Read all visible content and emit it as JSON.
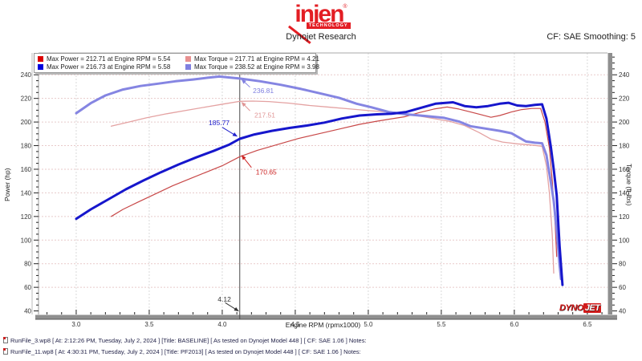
{
  "header": {
    "brand": "injen",
    "registered": "®",
    "tagline": "TECHNOLOGY",
    "brand_color": "#e31e24",
    "subtitle": "Dynojet Research",
    "smoothing": "CF: SAE Smoothing: 5"
  },
  "legend": {
    "items": [
      {
        "swatch": "#dd0000",
        "label": "Max Power = 212.71 at Engine RPM = 5.54"
      },
      {
        "swatch": "#e89090",
        "label": "Max Torque = 217.71 at Engine RPM = 4.21"
      },
      {
        "swatch": "#0000dd",
        "label": "Max Power = 216.73 at Engine RPM = 5.58"
      },
      {
        "swatch": "#8080e0",
        "label": "Max Torque = 238.52 at Engine RPM = 3.98"
      }
    ]
  },
  "chart_data": {
    "type": "line",
    "xlabel": "Engine RPM (rpmx1000)",
    "ylabel_left": "Power (hp)",
    "ylabel_right": "Torque (ft-lbs)",
    "x_range": [
      2.742,
      6.638
    ],
    "y_range": [
      37.0,
      258.5
    ],
    "x_ticks": [
      "3.0",
      "3.5",
      "4.0",
      "4.5",
      "5.0",
      "5.5",
      "6.0",
      "6.5"
    ],
    "x_tick_values": [
      3.0,
      3.5,
      4.0,
      4.5,
      5.0,
      5.5,
      6.0,
      6.5
    ],
    "y_ticks": [
      40,
      60,
      80,
      100,
      120,
      140,
      160,
      180,
      200,
      220,
      240
    ],
    "x_minor_step": 0.1,
    "y_minor_step": 5,
    "grid_h_color": "#e8caca",
    "grid_v_color": "#d9d9d9",
    "cursor_rpm": 4.12,
    "cursor_color": "#4a4a4a",
    "series": [
      {
        "name": "baseline-torque",
        "legend": "Max Torque = 217.71 at Engine RPM = 4.21",
        "color": "#e4a2a2",
        "width": 1.3,
        "points": [
          [
            3.24,
            196.5
          ],
          [
            3.36,
            200
          ],
          [
            3.48,
            203.5
          ],
          [
            3.62,
            207
          ],
          [
            3.76,
            210
          ],
          [
            3.9,
            213
          ],
          [
            4.02,
            215.5
          ],
          [
            4.12,
            217.51
          ],
          [
            4.21,
            217.71
          ],
          [
            4.32,
            217.3
          ],
          [
            4.46,
            216
          ],
          [
            4.6,
            214
          ],
          [
            4.74,
            212.5
          ],
          [
            4.88,
            211
          ],
          [
            5.02,
            209.5
          ],
          [
            5.14,
            208.5
          ],
          [
            5.28,
            206.5
          ],
          [
            5.42,
            203.5
          ],
          [
            5.56,
            200.5
          ],
          [
            5.66,
            197
          ],
          [
            5.76,
            191
          ],
          [
            5.84,
            185.5
          ],
          [
            5.92,
            183
          ],
          [
            6.02,
            181.5
          ],
          [
            6.12,
            180.5
          ],
          [
            6.19,
            179.5
          ],
          [
            6.22,
            163
          ],
          [
            6.24,
            140
          ],
          [
            6.26,
            104
          ],
          [
            6.27,
            72
          ]
        ]
      },
      {
        "name": "baseline-power",
        "legend": "Max Power = 212.71 at Engine RPM = 5.54",
        "color": "#c84848",
        "width": 1.2,
        "points": [
          [
            3.24,
            120
          ],
          [
            3.32,
            126
          ],
          [
            3.42,
            132
          ],
          [
            3.54,
            139
          ],
          [
            3.66,
            146
          ],
          [
            3.78,
            152
          ],
          [
            3.9,
            158
          ],
          [
            4.0,
            163
          ],
          [
            4.12,
            170.65
          ],
          [
            4.24,
            176
          ],
          [
            4.38,
            181
          ],
          [
            4.52,
            186
          ],
          [
            4.66,
            190
          ],
          [
            4.8,
            194
          ],
          [
            4.94,
            198
          ],
          [
            5.05,
            200.5
          ],
          [
            5.15,
            202.5
          ],
          [
            5.25,
            204.5
          ],
          [
            5.35,
            208
          ],
          [
            5.45,
            211
          ],
          [
            5.54,
            212.71
          ],
          [
            5.62,
            211
          ],
          [
            5.7,
            208.5
          ],
          [
            5.78,
            206
          ],
          [
            5.84,
            204
          ],
          [
            5.9,
            205.5
          ],
          [
            5.98,
            208.5
          ],
          [
            6.05,
            210.5
          ],
          [
            6.12,
            211.5
          ],
          [
            6.18,
            211.5
          ],
          [
            6.21,
            200
          ],
          [
            6.24,
            178
          ],
          [
            6.26,
            150
          ],
          [
            6.28,
            112
          ],
          [
            6.29,
            86
          ]
        ]
      },
      {
        "name": "pf2013-torque",
        "legend": "Max Torque = 238.52 at Engine RPM = 3.98",
        "color": "#8585e2",
        "width": 3,
        "points": [
          [
            3.0,
            207.5
          ],
          [
            3.1,
            216
          ],
          [
            3.2,
            222.5
          ],
          [
            3.32,
            227.5
          ],
          [
            3.44,
            230.5
          ],
          [
            3.56,
            232.5
          ],
          [
            3.68,
            234.5
          ],
          [
            3.8,
            236
          ],
          [
            3.9,
            237.5
          ],
          [
            3.98,
            238.52
          ],
          [
            4.12,
            236.81
          ],
          [
            4.26,
            234.5
          ],
          [
            4.4,
            231.5
          ],
          [
            4.54,
            228
          ],
          [
            4.68,
            224
          ],
          [
            4.8,
            220.5
          ],
          [
            4.92,
            215.5
          ],
          [
            5.02,
            212.5
          ],
          [
            5.14,
            208.5
          ],
          [
            5.26,
            206.5
          ],
          [
            5.4,
            205
          ],
          [
            5.52,
            203.5
          ],
          [
            5.62,
            200.5
          ],
          [
            5.7,
            196.5
          ],
          [
            5.8,
            194.5
          ],
          [
            5.9,
            192.5
          ],
          [
            5.98,
            190.5
          ],
          [
            6.08,
            183.5
          ],
          [
            6.14,
            182.5
          ],
          [
            6.19,
            182
          ],
          [
            6.22,
            172
          ],
          [
            6.25,
            149
          ],
          [
            6.27,
            133
          ],
          [
            6.29,
            108
          ],
          [
            6.31,
            79
          ],
          [
            6.32,
            67
          ]
        ]
      },
      {
        "name": "pf2013-power",
        "legend": "Max Power = 216.73 at Engine RPM = 5.58",
        "color": "#1616cc",
        "width": 3,
        "points": [
          [
            3.0,
            118
          ],
          [
            3.1,
            126
          ],
          [
            3.22,
            134.5
          ],
          [
            3.34,
            143
          ],
          [
            3.46,
            150.5
          ],
          [
            3.58,
            157.5
          ],
          [
            3.7,
            164
          ],
          [
            3.82,
            170
          ],
          [
            3.94,
            175.5
          ],
          [
            4.05,
            181
          ],
          [
            4.12,
            185.77
          ],
          [
            4.22,
            189.5
          ],
          [
            4.34,
            192.5
          ],
          [
            4.46,
            195
          ],
          [
            4.58,
            197
          ],
          [
            4.7,
            199.5
          ],
          [
            4.82,
            203
          ],
          [
            4.94,
            205.5
          ],
          [
            5.06,
            206.5
          ],
          [
            5.16,
            207
          ],
          [
            5.26,
            208.5
          ],
          [
            5.36,
            212
          ],
          [
            5.46,
            215.5
          ],
          [
            5.58,
            216.73
          ],
          [
            5.66,
            213.5
          ],
          [
            5.74,
            212.5
          ],
          [
            5.82,
            213.5
          ],
          [
            5.9,
            215.5
          ],
          [
            5.96,
            216.3
          ],
          [
            6.02,
            214
          ],
          [
            6.08,
            213.5
          ],
          [
            6.14,
            214.5
          ],
          [
            6.19,
            215
          ],
          [
            6.22,
            203
          ],
          [
            6.25,
            179
          ],
          [
            6.27,
            160
          ],
          [
            6.29,
            138
          ],
          [
            6.31,
            95
          ],
          [
            6.33,
            62
          ]
        ]
      }
    ],
    "annotations": [
      {
        "text": "236.81",
        "color": "#8080e0",
        "label_rpm": 4.21,
        "label_val": 226.5,
        "anchor": "start",
        "from": [
          4.19,
          229.5
        ],
        "to": [
          4.135,
          235.8
        ]
      },
      {
        "text": "217.51",
        "color": "#e09595",
        "label_rpm": 4.22,
        "label_val": 206.0,
        "anchor": "start",
        "from": [
          4.19,
          209.5
        ],
        "to": [
          4.135,
          216.5
        ]
      },
      {
        "text": "185.77",
        "color": "#2020cc",
        "label_rpm": 4.05,
        "label_val": 199.5,
        "anchor": "end",
        "from": [
          4.0,
          195.5
        ],
        "to": [
          4.1,
          188.0
        ]
      },
      {
        "text": "170.65",
        "color": "#cc2222",
        "label_rpm": 4.23,
        "label_val": 157.5,
        "anchor": "start",
        "from": [
          4.2,
          161.5
        ],
        "to": [
          4.135,
          171.5
        ]
      },
      {
        "text": "4.12",
        "color": "#333333",
        "label_rpm": 4.06,
        "label_val": 50.0,
        "anchor": "end",
        "from": [
          4.02,
          47.0
        ],
        "to": [
          4.11,
          40.0
        ]
      }
    ],
    "watermark": {
      "part1": "DYNO",
      "part2": "JET",
      "color": "#d21a1a"
    }
  },
  "footer": {
    "runs": [
      {
        "text": "RunFile_3.wp8 [ At: 2:12:26 PM, Tuesday, July 2, 2024 ] [Title: BASELINE]  [ As tested on Dynojet Model 448 ] [ CF: SAE 1.06 ] Notes:"
      },
      {
        "text": "RunFile_11.wp8 [ At: 4:30:31 PM, Tuesday, July 2, 2024 ] [Title: PF2013]  [ As tested on Dynojet Model 448 ] [ CF: SAE 1.06 ] Notes:"
      }
    ]
  }
}
